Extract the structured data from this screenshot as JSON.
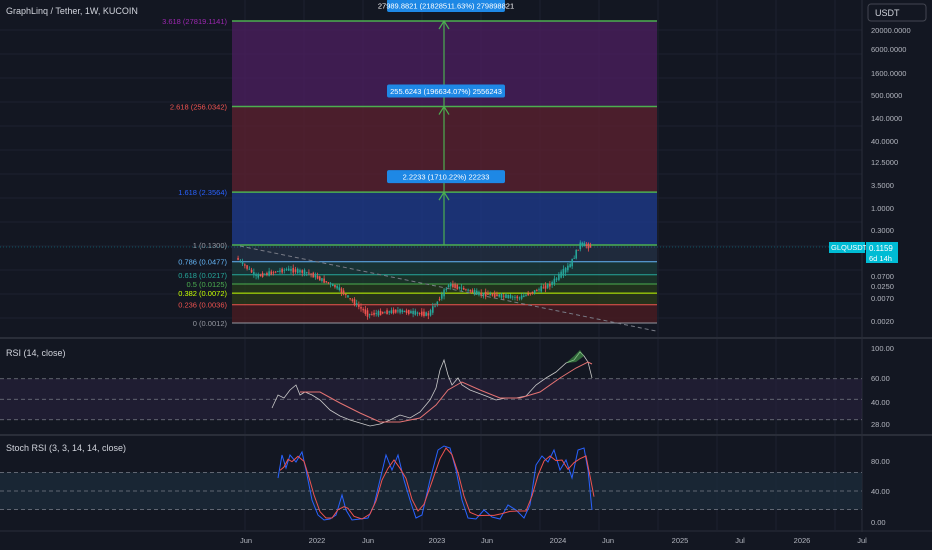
{
  "header": {
    "symbol_title": "GraphLinq / Tether, 1W, KUCOIN"
  },
  "currency_button": {
    "label": "USDT"
  },
  "price_axis": {
    "ticks": [
      "20000.0000",
      "6000.0000",
      "1600.0000",
      "500.0000",
      "140.0000",
      "40.0000",
      "12.5000",
      "3.5000",
      "1.0000",
      "0.3000",
      "0.0700",
      "0.0250",
      "0.0070",
      "0.0020"
    ]
  },
  "price_tag": {
    "symbol": "GLQUSDT",
    "price": "0.1159",
    "countdown": "6d 14h"
  },
  "colors": {
    "background": "#131722",
    "up": "#26a69a",
    "down": "#ef5350",
    "fib_line": "#4caf50",
    "rsi_line": "#c9c9c9",
    "rsi_ma": "#e57373",
    "stoch_k": "#2962ff",
    "stoch_d": "#ef5350",
    "label_blue": "#1e88e5",
    "price_tag": "#00bcd4"
  },
  "fib_levels": [
    {
      "text": "3.618 (27819.1141)",
      "value": 27819.1141,
      "color": "#9c27b0"
    },
    {
      "text": "2.618 (256.0342)",
      "value": 256.0342,
      "color": "#ef5350"
    },
    {
      "text": "1.618 (2.3564)",
      "value": 2.3564,
      "color": "#2962ff"
    },
    {
      "text": "1 (0.1300)",
      "value": 0.13,
      "color": "#9598a1"
    },
    {
      "text": "0.786 (0.0477)",
      "value": 0.0477,
      "color": "#64b5f6"
    },
    {
      "text": "0.618 (0.0217)",
      "value": 0.0217,
      "color": "#26a69a"
    },
    {
      "text": "0.5 (0.0125)",
      "value": 0.0125,
      "color": "#4caf50"
    },
    {
      "text": "0.382 (0.0072)",
      "value": 0.0072,
      "color": "#c6ff00"
    },
    {
      "text": "0.236 (0.0036)",
      "value": 0.0036,
      "color": "#ef5350"
    },
    {
      "text": "0 (0.0012)",
      "value": 0.0012,
      "color": "#9598a1"
    }
  ],
  "measure_labels": [
    {
      "text": "27989.8821 (21828511.63%) 279898821",
      "value": 27819.1141
    },
    {
      "text": "255.6243 (196634.07%) 2556243",
      "value": 256.0342
    },
    {
      "text": "2.2233 (1710.22%) 22233",
      "value": 2.3564
    }
  ],
  "rsi": {
    "title": "RSI (14, close)",
    "ticks": [
      "100.00",
      "60.00",
      "40.00",
      "28.00"
    ],
    "levels": [
      70,
      50,
      30
    ]
  },
  "stoch": {
    "title": "Stoch RSI (3, 3, 14, 14, close)",
    "ticks": [
      "80.00",
      "40.00",
      "0.00"
    ],
    "levels": [
      80,
      50,
      20
    ]
  },
  "time_axis": {
    "labels": [
      {
        "text": "Jun",
        "date": "2021-06"
      },
      {
        "text": "2022",
        "date": "2022-01"
      },
      {
        "text": "Jun",
        "date": "2022-06"
      },
      {
        "text": "2023",
        "date": "2023-01"
      },
      {
        "text": "Jun",
        "date": "2023-06"
      },
      {
        "text": "2024",
        "date": "2024-01"
      },
      {
        "text": "Jun",
        "date": "2024-06"
      },
      {
        "text": "2025",
        "date": "2025-01"
      },
      {
        "text": "Jul",
        "date": "2025-07"
      },
      {
        "text": "2026",
        "date": "2026-01"
      },
      {
        "text": "Jul",
        "date": "2026-07"
      }
    ]
  },
  "chart_data": {
    "type": "candlestick",
    "title": "GraphLinq / Tether, 1W, KUCOIN",
    "scale": "log",
    "x_range": [
      "2021-02",
      "2026-07"
    ],
    "y_range": [
      0.0012,
      50000
    ],
    "current_price": 0.1159,
    "points": [
      {
        "date": "2021-05",
        "close": 0.06
      },
      {
        "date": "2021-07",
        "close": 0.02
      },
      {
        "date": "2021-10",
        "close": 0.03
      },
      {
        "date": "2021-12",
        "close": 0.025
      },
      {
        "date": "2022-03",
        "close": 0.01
      },
      {
        "date": "2022-06",
        "close": 0.002
      },
      {
        "date": "2022-09",
        "close": 0.0025
      },
      {
        "date": "2022-12",
        "close": 0.002
      },
      {
        "date": "2023-02",
        "close": 0.012
      },
      {
        "date": "2023-05",
        "close": 0.007
      },
      {
        "date": "2023-09",
        "close": 0.0055
      },
      {
        "date": "2023-12",
        "close": 0.012
      },
      {
        "date": "2024-02",
        "close": 0.04
      },
      {
        "date": "2024-03",
        "close": 0.14
      },
      {
        "date": "2024-04",
        "close": 0.116
      }
    ]
  }
}
